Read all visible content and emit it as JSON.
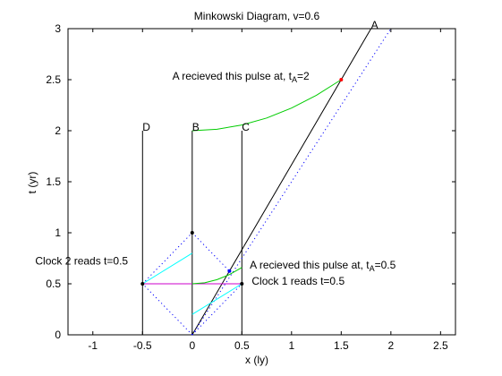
{
  "chart_data": {
    "type": "line",
    "title": "Minkowski Diagram, v=0.6",
    "xlabel": "x (ly)",
    "ylabel": "t (yr)",
    "xlim": [
      -1.25,
      2.65
    ],
    "ylim": [
      0,
      3
    ],
    "x_ticks": [
      "-1",
      "-0.5",
      "0",
      "0.5",
      "1",
      "1.5",
      "2",
      "2.5"
    ],
    "x_tick_values": [
      -1,
      -0.5,
      0,
      0.5,
      1,
      1.5,
      2,
      2.5
    ],
    "y_ticks": [
      "0",
      "0.5",
      "1",
      "1.5",
      "2",
      "2.5",
      "3"
    ],
    "y_tick_values": [
      0,
      0.5,
      1,
      1.5,
      2,
      2.5,
      3
    ],
    "grid": false,
    "colors": {
      "worldline": "#000000",
      "light": "#0000ff",
      "green": "#00cc00",
      "cyan": "#00ffff",
      "magenta": "#cc00cc",
      "red_point": "#ff0000",
      "blue_point": "#0000ff"
    },
    "series": [
      {
        "key": "worldline_D",
        "label": "D",
        "style": "solid",
        "color": "worldline",
        "x": [
          -0.5,
          -0.5
        ],
        "y": [
          0,
          2
        ]
      },
      {
        "key": "worldline_B",
        "label": "B",
        "style": "solid",
        "color": "worldline",
        "x": [
          0,
          0
        ],
        "y": [
          0,
          2
        ]
      },
      {
        "key": "worldline_C",
        "label": "C",
        "style": "solid",
        "color": "worldline",
        "x": [
          0.5,
          0.5
        ],
        "y": [
          0,
          2
        ]
      },
      {
        "key": "worldline_A",
        "label": "A",
        "style": "solid",
        "color": "worldline",
        "x": [
          0,
          1.8
        ],
        "y": [
          0,
          3
        ]
      },
      {
        "key": "light_future_right",
        "style": "dotted",
        "color": "light",
        "x": [
          0,
          2
        ],
        "y": [
          0,
          3
        ]
      },
      {
        "key": "light_left_out",
        "style": "dotted",
        "color": "light",
        "x": [
          0,
          -0.5
        ],
        "y": [
          0,
          0.5
        ]
      },
      {
        "key": "light_left_back",
        "style": "dotted",
        "color": "light",
        "x": [
          -0.5,
          0
        ],
        "y": [
          0.5,
          1
        ]
      },
      {
        "key": "light_right_out",
        "style": "dotted",
        "color": "light",
        "x": [
          0,
          0.375
        ],
        "y": [
          1,
          0.625
        ]
      },
      {
        "key": "light_to_A",
        "style": "dotted",
        "color": "light",
        "x": [
          0,
          0.5
        ],
        "y": [
          0,
          0.5
        ]
      },
      {
        "key": "simultaneity_B",
        "style": "solid",
        "color": "magenta",
        "x": [
          -0.5,
          0.5
        ],
        "y": [
          0.5,
          0.5
        ]
      },
      {
        "key": "cyan_upper",
        "style": "solid",
        "color": "cyan",
        "x": [
          -0.5,
          0
        ],
        "y": [
          0.5,
          0.8
        ]
      },
      {
        "key": "cyan_lower",
        "style": "solid",
        "color": "cyan",
        "x": [
          0,
          0.5
        ],
        "y": [
          0.2,
          0.5
        ]
      },
      {
        "key": "green_upper",
        "style": "solid",
        "color": "green",
        "x": [
          0,
          0.25,
          0.5,
          0.75,
          1.0,
          1.25,
          1.5
        ],
        "y": [
          2.0,
          2.014,
          2.056,
          2.125,
          2.222,
          2.347,
          2.5
        ]
      },
      {
        "key": "green_lower",
        "style": "solid",
        "color": "green",
        "x": [
          0,
          0.125,
          0.25,
          0.375,
          0.5
        ],
        "y": [
          0.5,
          0.51,
          0.54,
          0.59,
          0.66
        ]
      }
    ],
    "points": [
      {
        "key": "pt_D_half",
        "x": -0.5,
        "y": 0.5,
        "color": "worldline"
      },
      {
        "key": "pt_B_one",
        "x": 0,
        "y": 1,
        "color": "worldline"
      },
      {
        "key": "pt_C_half",
        "x": 0.5,
        "y": 0.5,
        "color": "worldline"
      },
      {
        "key": "pt_A_2p5",
        "x": 1.5,
        "y": 2.5,
        "color": "red_point"
      },
      {
        "key": "pt_A_0p625",
        "x": 0.375,
        "y": 0.625,
        "color": "blue_point"
      }
    ],
    "annotations": [
      {
        "key": "label_A",
        "text": "A",
        "x": 1.8,
        "y": 3.0
      },
      {
        "key": "label_B",
        "text": "B",
        "x": 0.0,
        "y": 2.0
      },
      {
        "key": "label_C",
        "text": "C",
        "x": 0.5,
        "y": 2.0
      },
      {
        "key": "label_D",
        "text": "D",
        "x": -0.5,
        "y": 2.0
      },
      {
        "key": "ann_top",
        "text": "A recieved this pulse at, t",
        "sub": "A",
        "suffix": "=2",
        "x": -0.2,
        "y": 2.5
      },
      {
        "key": "ann_mid",
        "text": "A recieved this pulse at, t",
        "sub": "A",
        "suffix": "=0.5",
        "x": 0.58,
        "y": 0.65
      },
      {
        "key": "ann_clock1",
        "text": "Clock 1 reads t=0.5",
        "x": 0.6,
        "y": 0.49
      },
      {
        "key": "ann_clock2",
        "text": "Clock 2 reads t=0.5",
        "x": -1.58,
        "y": 0.69
      }
    ]
  }
}
